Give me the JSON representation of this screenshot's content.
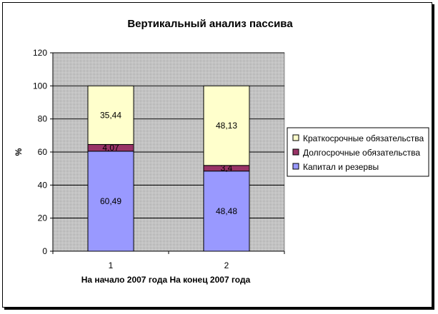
{
  "chart_data": {
    "type": "bar",
    "stacked": true,
    "title": "Вертикальный анализ пассива",
    "xlabel": "На начало 2007 года На конец 2007 года",
    "ylabel": "%",
    "categories": [
      "1",
      "2"
    ],
    "ylim": [
      0,
      120
    ],
    "yticks": [
      "0",
      "20",
      "40",
      "60",
      "80",
      "100",
      "120"
    ],
    "grid": true,
    "legend_position": "right",
    "series": [
      {
        "name": "Капитал и резервы",
        "values": [
          60.49,
          48.48
        ],
        "labels": [
          "60,49",
          "48,48"
        ],
        "color": "#9999ff"
      },
      {
        "name": "Долгосрочные обязательства",
        "values": [
          4.07,
          3.4
        ],
        "labels": [
          "4,07",
          "3,4"
        ],
        "color": "#993366"
      },
      {
        "name": "Краткосрочные обязательства",
        "values": [
          35.44,
          48.13
        ],
        "labels": [
          "35,44",
          "48,13"
        ],
        "color": "#ffffcc"
      }
    ],
    "legend_order": [
      2,
      1,
      0
    ],
    "plot_background": "#c0c0c0"
  }
}
